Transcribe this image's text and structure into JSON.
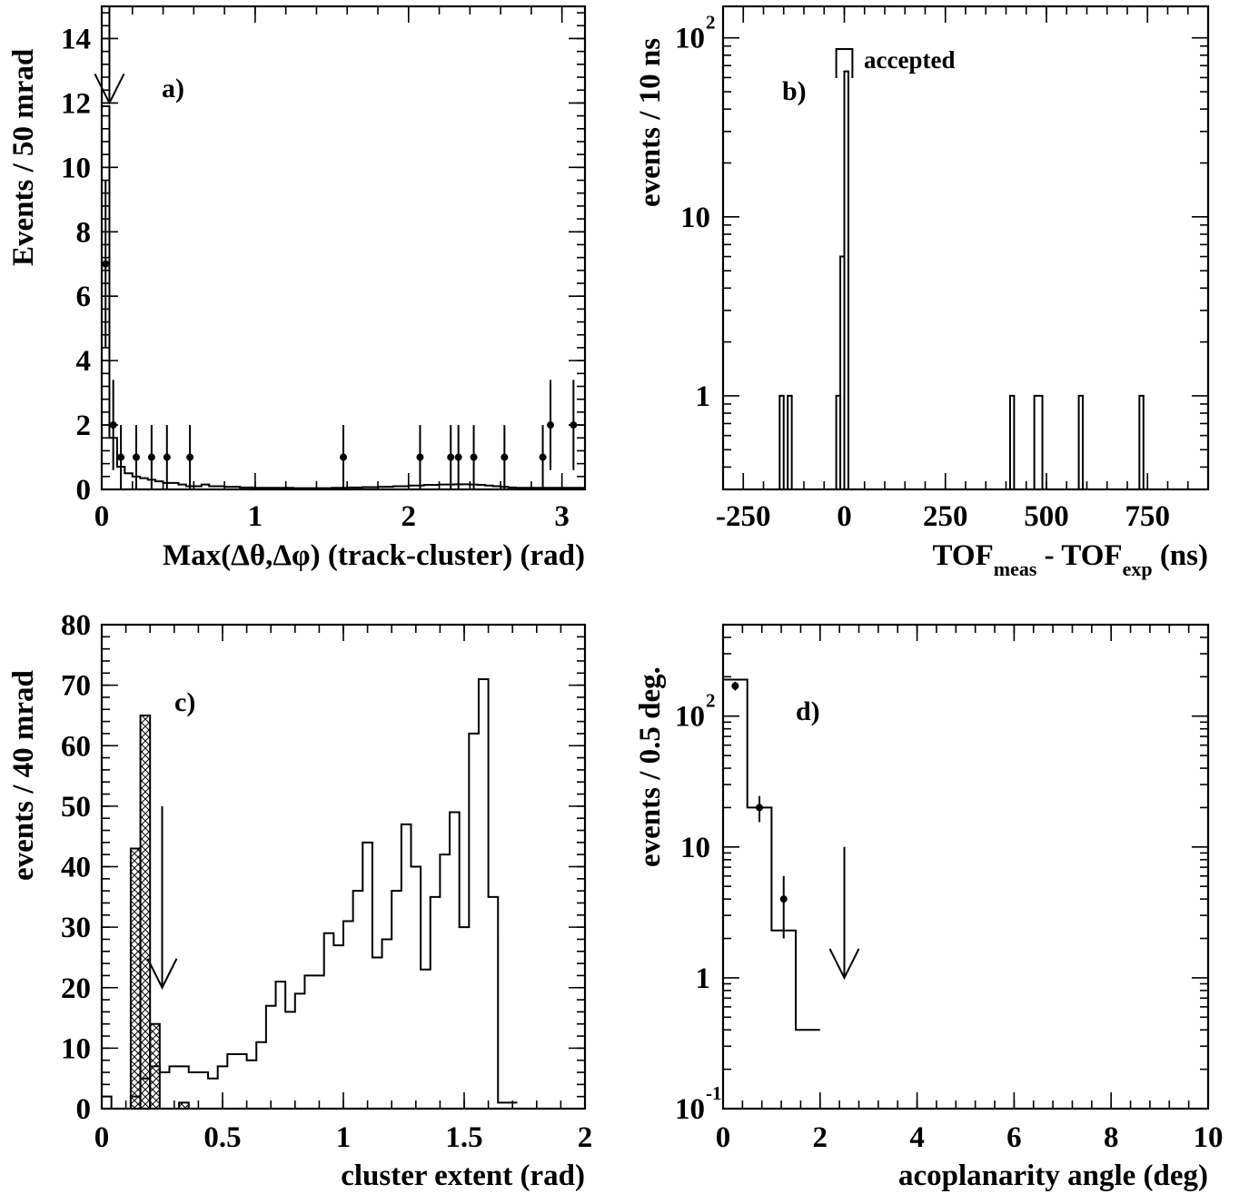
{
  "chart_data": [
    {
      "type": "histogram",
      "panel_label": "a)",
      "xlabel": "Max(Δθ,Δφ) (track-cluster) (rad)",
      "ylabel": "Events / 50 mrad",
      "xlim": [
        0,
        3.15
      ],
      "ylim": [
        0,
        15
      ],
      "x_ticks": [
        "0",
        "1",
        "2",
        "3"
      ],
      "y_ticks": [
        "0",
        "2",
        "4",
        "6",
        "8",
        "10",
        "12",
        "14"
      ],
      "cut_arrow_x": 0.05,
      "mc_histogram": {
        "bin_width": 0.05,
        "values": [
          11.9,
          1.6,
          0.7,
          0.5,
          0.4,
          0.35,
          0.3,
          0.25,
          0.2,
          0.2,
          0.15,
          0.1,
          0.1,
          0.15,
          0.1,
          0.1,
          0.08,
          0.08,
          0.06,
          0.06,
          0.05,
          0.05,
          0.05,
          0.05,
          0.05,
          0.04,
          0.04,
          0.04,
          0.04,
          0.04,
          0.05,
          0.05,
          0.06,
          0.06,
          0.07,
          0.07,
          0.08,
          0.08,
          0.1,
          0.1,
          0.12,
          0.12,
          0.14,
          0.14,
          0.15,
          0.15,
          0.16,
          0.16,
          0.15,
          0.14,
          0.12,
          0.1,
          0.08,
          0.06,
          0.05,
          0.05,
          0.05,
          0.05,
          0.05,
          0.05,
          0.05,
          0.05,
          0.05
        ]
      },
      "data_points": [
        {
          "x": 0.025,
          "y": 7,
          "err": 2.6
        },
        {
          "x": 0.075,
          "y": 2,
          "err": 1.4
        },
        {
          "x": 0.125,
          "y": 1,
          "err": 1
        },
        {
          "x": 0.225,
          "y": 1,
          "err": 1
        },
        {
          "x": 0.325,
          "y": 1,
          "err": 1
        },
        {
          "x": 0.425,
          "y": 1,
          "err": 1
        },
        {
          "x": 0.575,
          "y": 1,
          "err": 1
        },
        {
          "x": 1.575,
          "y": 1,
          "err": 1
        },
        {
          "x": 2.075,
          "y": 1,
          "err": 1
        },
        {
          "x": 2.275,
          "y": 1,
          "err": 1
        },
        {
          "x": 2.325,
          "y": 1,
          "err": 1
        },
        {
          "x": 2.425,
          "y": 1,
          "err": 1
        },
        {
          "x": 2.625,
          "y": 1,
          "err": 1
        },
        {
          "x": 2.875,
          "y": 1,
          "err": 1
        },
        {
          "x": 2.925,
          "y": 2,
          "err": 1.4
        },
        {
          "x": 3.075,
          "y": 2,
          "err": 1.4
        }
      ]
    },
    {
      "type": "histogram",
      "panel_label": "b)",
      "xlabel_main": "TOF",
      "xlabel_sub1": "meas",
      "xlabel_mid": " - TOF",
      "xlabel_sub2": "exp",
      "xlabel_end": " (ns)",
      "ylabel": "events / 10 ns",
      "annotation": "accepted",
      "xlim": [
        -300,
        900
      ],
      "y_scale": "log",
      "ylim": [
        0.3,
        150
      ],
      "x_ticks": [
        "-250",
        "0",
        "250",
        "500",
        "750"
      ],
      "y_ticks": [
        {
          "v": 1,
          "label": "1",
          "exp": ""
        },
        {
          "v": 10,
          "label": "10",
          "exp": ""
        },
        {
          "v": 100,
          "label": "10",
          "exp": "2"
        }
      ],
      "accepted_window": [
        -5,
        5
      ],
      "bars": [
        {
          "x0": -160,
          "x1": -150,
          "y": 1
        },
        {
          "x0": -140,
          "x1": -130,
          "y": 1
        },
        {
          "x0": -20,
          "x1": -10,
          "y": 1
        },
        {
          "x0": -10,
          "x1": 0,
          "y": 6
        },
        {
          "x0": 0,
          "x1": 10,
          "y": 65
        },
        {
          "x0": 410,
          "x1": 420,
          "y": 1
        },
        {
          "x0": 470,
          "x1": 490,
          "y": 1
        },
        {
          "x0": 580,
          "x1": 590,
          "y": 1
        },
        {
          "x0": 730,
          "x1": 740,
          "y": 1
        }
      ]
    },
    {
      "type": "histogram",
      "panel_label": "c)",
      "xlabel": "cluster extent (rad)",
      "ylabel": "events / 40 mrad",
      "xlim": [
        0,
        2
      ],
      "ylim": [
        0,
        80
      ],
      "x_ticks": [
        "0",
        "0.5",
        "1",
        "1.5",
        "2"
      ],
      "y_ticks": [
        "0",
        "10",
        "20",
        "30",
        "40",
        "50",
        "60",
        "70",
        "80"
      ],
      "cut_arrow_x": 0.25,
      "open_histogram": {
        "bin_width": 0.04,
        "values": [
          2,
          0,
          0,
          2,
          5,
          7,
          6,
          7,
          7,
          6,
          6,
          5,
          7,
          9,
          9,
          8,
          11,
          17,
          21,
          16,
          19,
          22,
          22,
          29,
          27,
          31,
          36,
          44,
          25,
          28,
          36,
          47,
          40,
          23,
          35,
          42,
          49,
          30,
          62,
          71,
          35,
          1,
          1
        ]
      },
      "hatched_histogram": {
        "bin_width": 0.04,
        "values": [
          0,
          0,
          0,
          43,
          65,
          14,
          0,
          0,
          1,
          0,
          0,
          0,
          0,
          0
        ]
      }
    },
    {
      "type": "histogram",
      "panel_label": "d)",
      "xlabel": "acoplanarity angle (deg)",
      "ylabel": "events / 0.5 deg.",
      "xlim": [
        0,
        10
      ],
      "y_scale": "log",
      "ylim": [
        0.1,
        500
      ],
      "x_ticks": [
        "0",
        "2",
        "4",
        "6",
        "8",
        "10"
      ],
      "y_ticks": [
        {
          "v": 0.1,
          "label": "10",
          "exp": "-1"
        },
        {
          "v": 1,
          "label": "1",
          "exp": ""
        },
        {
          "v": 10,
          "label": "10",
          "exp": ""
        },
        {
          "v": 100,
          "label": "10",
          "exp": "2"
        }
      ],
      "cut_arrow_x": 2.5,
      "mc_histogram": {
        "bin_width": 0.5,
        "values": [
          190,
          20,
          2.3,
          0.4
        ]
      },
      "data_points": [
        {
          "x": 0.25,
          "y": 170,
          "err": 13
        },
        {
          "x": 0.75,
          "y": 20,
          "err": 4.5
        },
        {
          "x": 1.25,
          "y": 4,
          "err": 2
        }
      ]
    }
  ]
}
